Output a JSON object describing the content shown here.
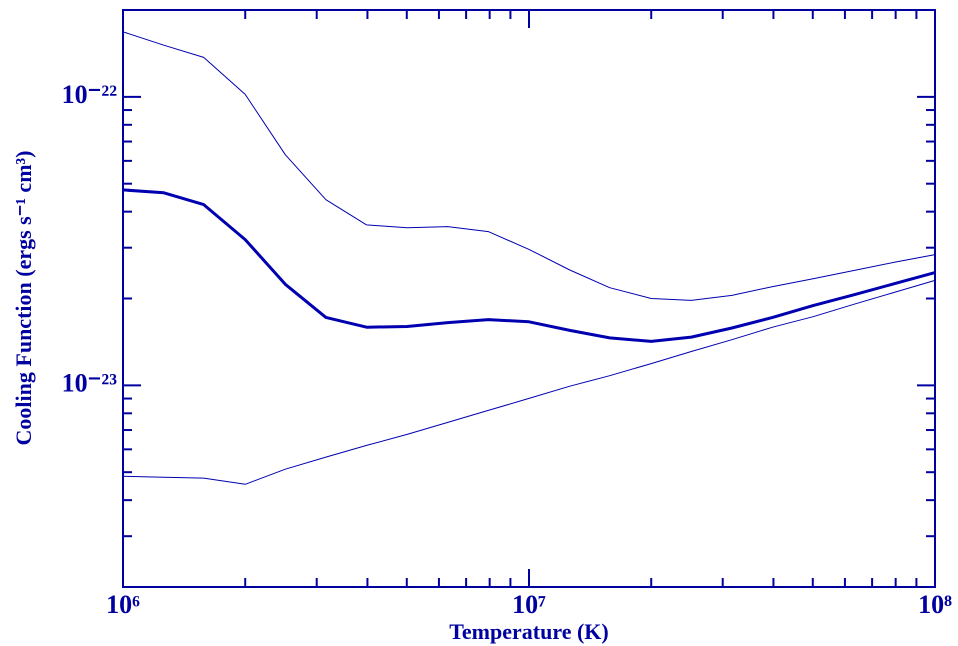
{
  "chart_data": {
    "type": "line",
    "xlabel": "Temperature (K)",
    "ylabel": "Cooling Function (ergs s⁻¹ cm³)",
    "xlog": true,
    "ylog": true,
    "xlim": [
      1000000,
      100000000
    ],
    "ylim": [
      2e-24,
      2e-22
    ],
    "xticks": [
      {
        "value": 1000000,
        "label": "10⁶"
      },
      {
        "value": 10000000,
        "label": "10⁷"
      },
      {
        "value": 100000000,
        "label": "10⁸"
      }
    ],
    "yticks": [
      {
        "value": 1e-23,
        "label": "10⁻²³"
      },
      {
        "value": 1e-22,
        "label": "10⁻²²"
      }
    ],
    "xminorticks": [
      2000000,
      3000000,
      4000000,
      5000000,
      6000000,
      7000000,
      8000000,
      9000000,
      20000000,
      30000000,
      40000000,
      50000000,
      60000000,
      70000000,
      80000000,
      90000000
    ],
    "yminorticks": [
      3e-24,
      4e-24,
      5e-24,
      6e-24,
      7e-24,
      8e-24,
      9e-24,
      2e-23,
      3e-23,
      4e-23,
      5e-23,
      6e-23,
      7e-23,
      8e-23,
      9e-23
    ],
    "axis_color": "#0000a0",
    "x": [
      1000000,
      1260000,
      1580000,
      2000000,
      2510000,
      3160000,
      3980000,
      5010000,
      6310000,
      7940000,
      10000000,
      12600000,
      15800000,
      20000000,
      25100000,
      31600000,
      39800000,
      50100000,
      63100000,
      79400000,
      100000000
    ],
    "series": [
      {
        "color": "#0000b0",
        "width": 1,
        "values": [
          1.68e-22,
          1.51e-22,
          1.37e-22,
          1.02e-22,
          6.3e-23,
          4.4e-23,
          3.6e-23,
          3.52e-23,
          3.55e-23,
          3.41e-23,
          2.96e-23,
          2.51e-23,
          2.18e-23,
          2e-23,
          1.97e-23,
          2.05e-23,
          2.2e-23,
          2.34e-23,
          2.5e-23,
          2.67e-23,
          2.84e-23
        ]
      },
      {
        "color": "#0000b0",
        "width": 3,
        "values": [
          4.76e-23,
          4.65e-23,
          4.23e-23,
          3.2e-23,
          2.24e-23,
          1.72e-23,
          1.59e-23,
          1.6e-23,
          1.65e-23,
          1.69e-23,
          1.66e-23,
          1.55e-23,
          1.46e-23,
          1.42e-23,
          1.47e-23,
          1.58e-23,
          1.72e-23,
          1.89e-23,
          2.06e-23,
          2.25e-23,
          2.46e-23
        ]
      },
      {
        "color": "#0000b0",
        "width": 1,
        "values": [
          4.84e-24,
          4.8e-24,
          4.77e-24,
          4.54e-24,
          5.12e-24,
          5.64e-24,
          6.19e-24,
          6.76e-24,
          7.44e-24,
          8.19e-24,
          9.01e-24,
          9.93e-24,
          1.08e-23,
          1.19e-23,
          1.31e-23,
          1.44e-23,
          1.59e-23,
          1.73e-23,
          1.91e-23,
          2.1e-23,
          2.31e-23
        ]
      }
    ]
  }
}
